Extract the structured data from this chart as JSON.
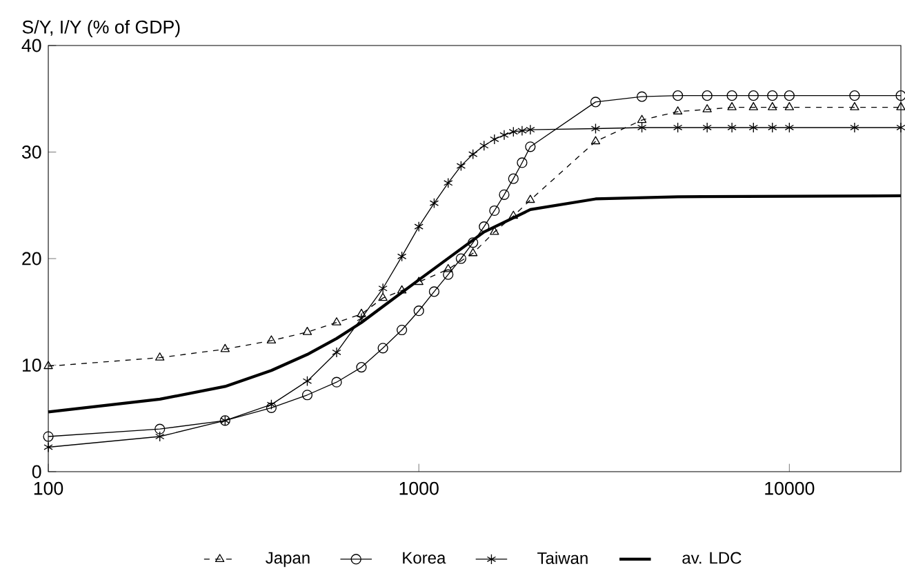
{
  "chart_data": {
    "type": "line",
    "ylabel": "S/Y, I/Y (% of GDP)",
    "log": "x",
    "xlim": [
      100,
      20000
    ],
    "ylim": [
      0,
      40
    ],
    "xticks": [
      100,
      1000,
      10000
    ],
    "yticks": [
      0,
      10,
      20,
      30,
      40
    ],
    "grid": false,
    "legend": "bottom",
    "series": [
      {
        "name": "Japan",
        "color": "#000000",
        "marker": "triangle",
        "line_style": "dashed",
        "x": [
          100,
          200,
          300,
          400,
          500,
          600,
          700,
          800,
          900,
          1000,
          1200,
          1400,
          1600,
          1800,
          2000,
          3000,
          4000,
          5000,
          6000,
          7000,
          8000,
          9000,
          10000,
          15000,
          20000
        ],
        "values": [
          9.9,
          10.7,
          11.5,
          12.3,
          13.1,
          14.0,
          14.8,
          16.3,
          17.0,
          17.8,
          19.0,
          20.5,
          22.5,
          24.0,
          25.5,
          31.0,
          33.0,
          33.8,
          34.0,
          34.2,
          34.2,
          34.2,
          34.2,
          34.2,
          34.2
        ]
      },
      {
        "name": "Korea",
        "color": "#000000",
        "marker": "circle",
        "line_style": "solid",
        "x": [
          100,
          200,
          300,
          400,
          500,
          600,
          700,
          800,
          900,
          1000,
          1100,
          1200,
          1300,
          1400,
          1500,
          1600,
          1700,
          1800,
          1900,
          2000,
          3000,
          4000,
          5000,
          6000,
          7000,
          8000,
          9000,
          10000,
          15000,
          20000
        ],
        "values": [
          3.3,
          4.0,
          4.8,
          6.0,
          7.2,
          8.4,
          9.8,
          11.6,
          13.3,
          15.1,
          16.9,
          18.5,
          20.0,
          21.5,
          23.0,
          24.5,
          26.0,
          27.5,
          29.0,
          30.5,
          34.7,
          35.2,
          35.3,
          35.3,
          35.3,
          35.3,
          35.3,
          35.3,
          35.3,
          35.3
        ]
      },
      {
        "name": "Taiwan",
        "color": "#000000",
        "marker": "cross",
        "line_style": "solid",
        "x": [
          100,
          200,
          300,
          400,
          500,
          600,
          700,
          800,
          900,
          1000,
          1100,
          1200,
          1300,
          1400,
          1500,
          1600,
          1700,
          1800,
          1900,
          2000,
          3000,
          4000,
          5000,
          6000,
          7000,
          8000,
          9000,
          10000,
          15000,
          20000
        ],
        "values": [
          2.3,
          3.3,
          4.8,
          6.3,
          8.5,
          11.2,
          14.4,
          17.2,
          20.2,
          23.0,
          25.2,
          27.1,
          28.7,
          29.8,
          30.6,
          31.2,
          31.6,
          31.9,
          32.0,
          32.1,
          32.2,
          32.3,
          32.3,
          32.3,
          32.3,
          32.3,
          32.3,
          32.3,
          32.3,
          32.3
        ]
      },
      {
        "name": "av. LDC",
        "color": "#000000",
        "marker": "none",
        "line_style": "solid",
        "x": [
          100,
          200,
          300,
          400,
          500,
          600,
          700,
          800,
          1000,
          1500,
          2000,
          3000,
          5000,
          20000
        ],
        "values": [
          5.6,
          6.8,
          8.0,
          9.5,
          11.0,
          12.5,
          14.0,
          15.5,
          18.0,
          22.5,
          24.6,
          25.6,
          25.8,
          25.9
        ]
      }
    ]
  }
}
